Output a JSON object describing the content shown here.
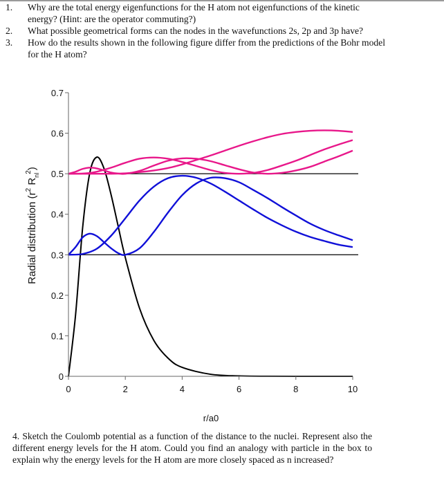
{
  "questions": [
    {
      "number": "1.",
      "text": "Why are the total energy eigenfunctions for the H atom not eigenfunctions of the kinetic energy? (Hint: are the operator commuting?)"
    },
    {
      "number": "2.",
      "text": "What possible geometrical forms can the nodes in the wavefunctions 2s, 2p and 3p have?"
    },
    {
      "number": "3.",
      "text": "How do the results shown in the following figure differ from the predictions of the Bohr model for the H atom?"
    }
  ],
  "question4": "4. Sketch the Coulomb potential as a function of the distance to the nuclei. Represent also the different energy levels for the H atom. Could you find an analogy with particle in the box to explain why the energy levels for the H atom are more closely spaced as n increased?",
  "chart_data": {
    "type": "line",
    "title": "",
    "xlabel": "r/a0",
    "ylabel_main": "Radial distribution (r",
    "ylabel_sup1": "2",
    "ylabel_mid": " R",
    "ylabel_sub": "nl",
    "ylabel_sup2": "2",
    "ylabel_end": ")",
    "xlim": [
      0,
      10
    ],
    "ylim": [
      0,
      0.7
    ],
    "xticks": [
      "0",
      "2",
      "4",
      "6",
      "8",
      "10"
    ],
    "yticks": [
      "0",
      "0.1",
      "0.2",
      "0.3",
      "0.4",
      "0.5",
      "0.6",
      "0.7"
    ],
    "grid": false,
    "baselines": [
      0.3,
      0.5
    ],
    "series": [
      {
        "color": "#000000",
        "x": [
          0,
          0.25,
          0.5,
          0.75,
          1,
          1.25,
          1.5,
          1.75,
          2,
          2.5,
          3,
          3.5,
          4,
          5,
          6,
          7,
          8,
          9,
          10
        ],
        "y": [
          0,
          0.152,
          0.368,
          0.502,
          0.541,
          0.513,
          0.448,
          0.37,
          0.293,
          0.168,
          0.089,
          0.045,
          0.022,
          0.005,
          0.001,
          0.0002,
          0,
          0,
          0
        ]
      },
      {
        "color": "#1010d8",
        "x": [
          0,
          0.25,
          0.5,
          0.75,
          1,
          1.25,
          1.5,
          1.75,
          2,
          2.5,
          3,
          3.5,
          4,
          4.5,
          5,
          5.5,
          6,
          6.5,
          7,
          7.5,
          8,
          8.5,
          9,
          9.5,
          10
        ],
        "y": [
          0.3,
          0.319,
          0.343,
          0.352,
          0.346,
          0.331,
          0.316,
          0.304,
          0.3,
          0.316,
          0.356,
          0.404,
          0.447,
          0.476,
          0.49,
          0.489,
          0.479,
          0.46,
          0.44,
          0.418,
          0.397,
          0.377,
          0.361,
          0.348,
          0.336
        ]
      },
      {
        "color": "#1010d8",
        "x": [
          0,
          0.5,
          1,
          1.5,
          2,
          2.5,
          3,
          3.5,
          4,
          4.5,
          5,
          5.5,
          6,
          6.5,
          7,
          7.5,
          8,
          8.5,
          9,
          9.5,
          10
        ],
        "y": [
          0.3,
          0.302,
          0.315,
          0.347,
          0.39,
          0.434,
          0.468,
          0.489,
          0.495,
          0.49,
          0.476,
          0.456,
          0.434,
          0.412,
          0.391,
          0.373,
          0.357,
          0.344,
          0.334,
          0.325,
          0.319
        ]
      },
      {
        "color": "#e8178a",
        "x": [
          0,
          0.25,
          0.5,
          0.75,
          1,
          1.25,
          1.5,
          1.75,
          2,
          2.5,
          3,
          3.5,
          4,
          4.5,
          5,
          5.5,
          6,
          6.5,
          7,
          7.5,
          8,
          8.5,
          9,
          9.5,
          10
        ],
        "y": [
          0.5,
          0.505,
          0.512,
          0.515,
          0.513,
          0.508,
          0.503,
          0.5005,
          0.5,
          0.507,
          0.52,
          0.532,
          0.538,
          0.537,
          0.531,
          0.521,
          0.511,
          0.503,
          0.5,
          0.502,
          0.508,
          0.517,
          0.53,
          0.543,
          0.557
        ]
      },
      {
        "color": "#e8178a",
        "x": [
          0,
          0.5,
          0.75,
          1,
          1.5,
          2,
          2.5,
          3,
          3.5,
          4,
          4.5,
          5,
          5.5,
          6,
          6.5,
          7,
          7.5,
          8,
          8.5,
          9,
          9.5,
          10
        ],
        "y": [
          0.5,
          0.5006,
          0.502,
          0.505,
          0.515,
          0.527,
          0.537,
          0.54,
          0.537,
          0.529,
          0.519,
          0.509,
          0.502,
          0.5,
          0.502,
          0.509,
          0.52,
          0.532,
          0.546,
          0.56,
          0.572,
          0.583
        ]
      },
      {
        "color": "#e8178a",
        "x": [
          0,
          0.5,
          1,
          1.5,
          2,
          2.5,
          3,
          3.5,
          4,
          4.5,
          5,
          5.5,
          6,
          6.5,
          7,
          7.5,
          8,
          8.5,
          9,
          9.5,
          10
        ],
        "y": [
          0.5,
          0.5,
          0.5,
          0.5,
          0.501,
          0.504,
          0.508,
          0.514,
          0.523,
          0.534,
          0.545,
          0.557,
          0.569,
          0.58,
          0.59,
          0.598,
          0.603,
          0.606,
          0.607,
          0.606,
          0.603
        ]
      }
    ]
  }
}
